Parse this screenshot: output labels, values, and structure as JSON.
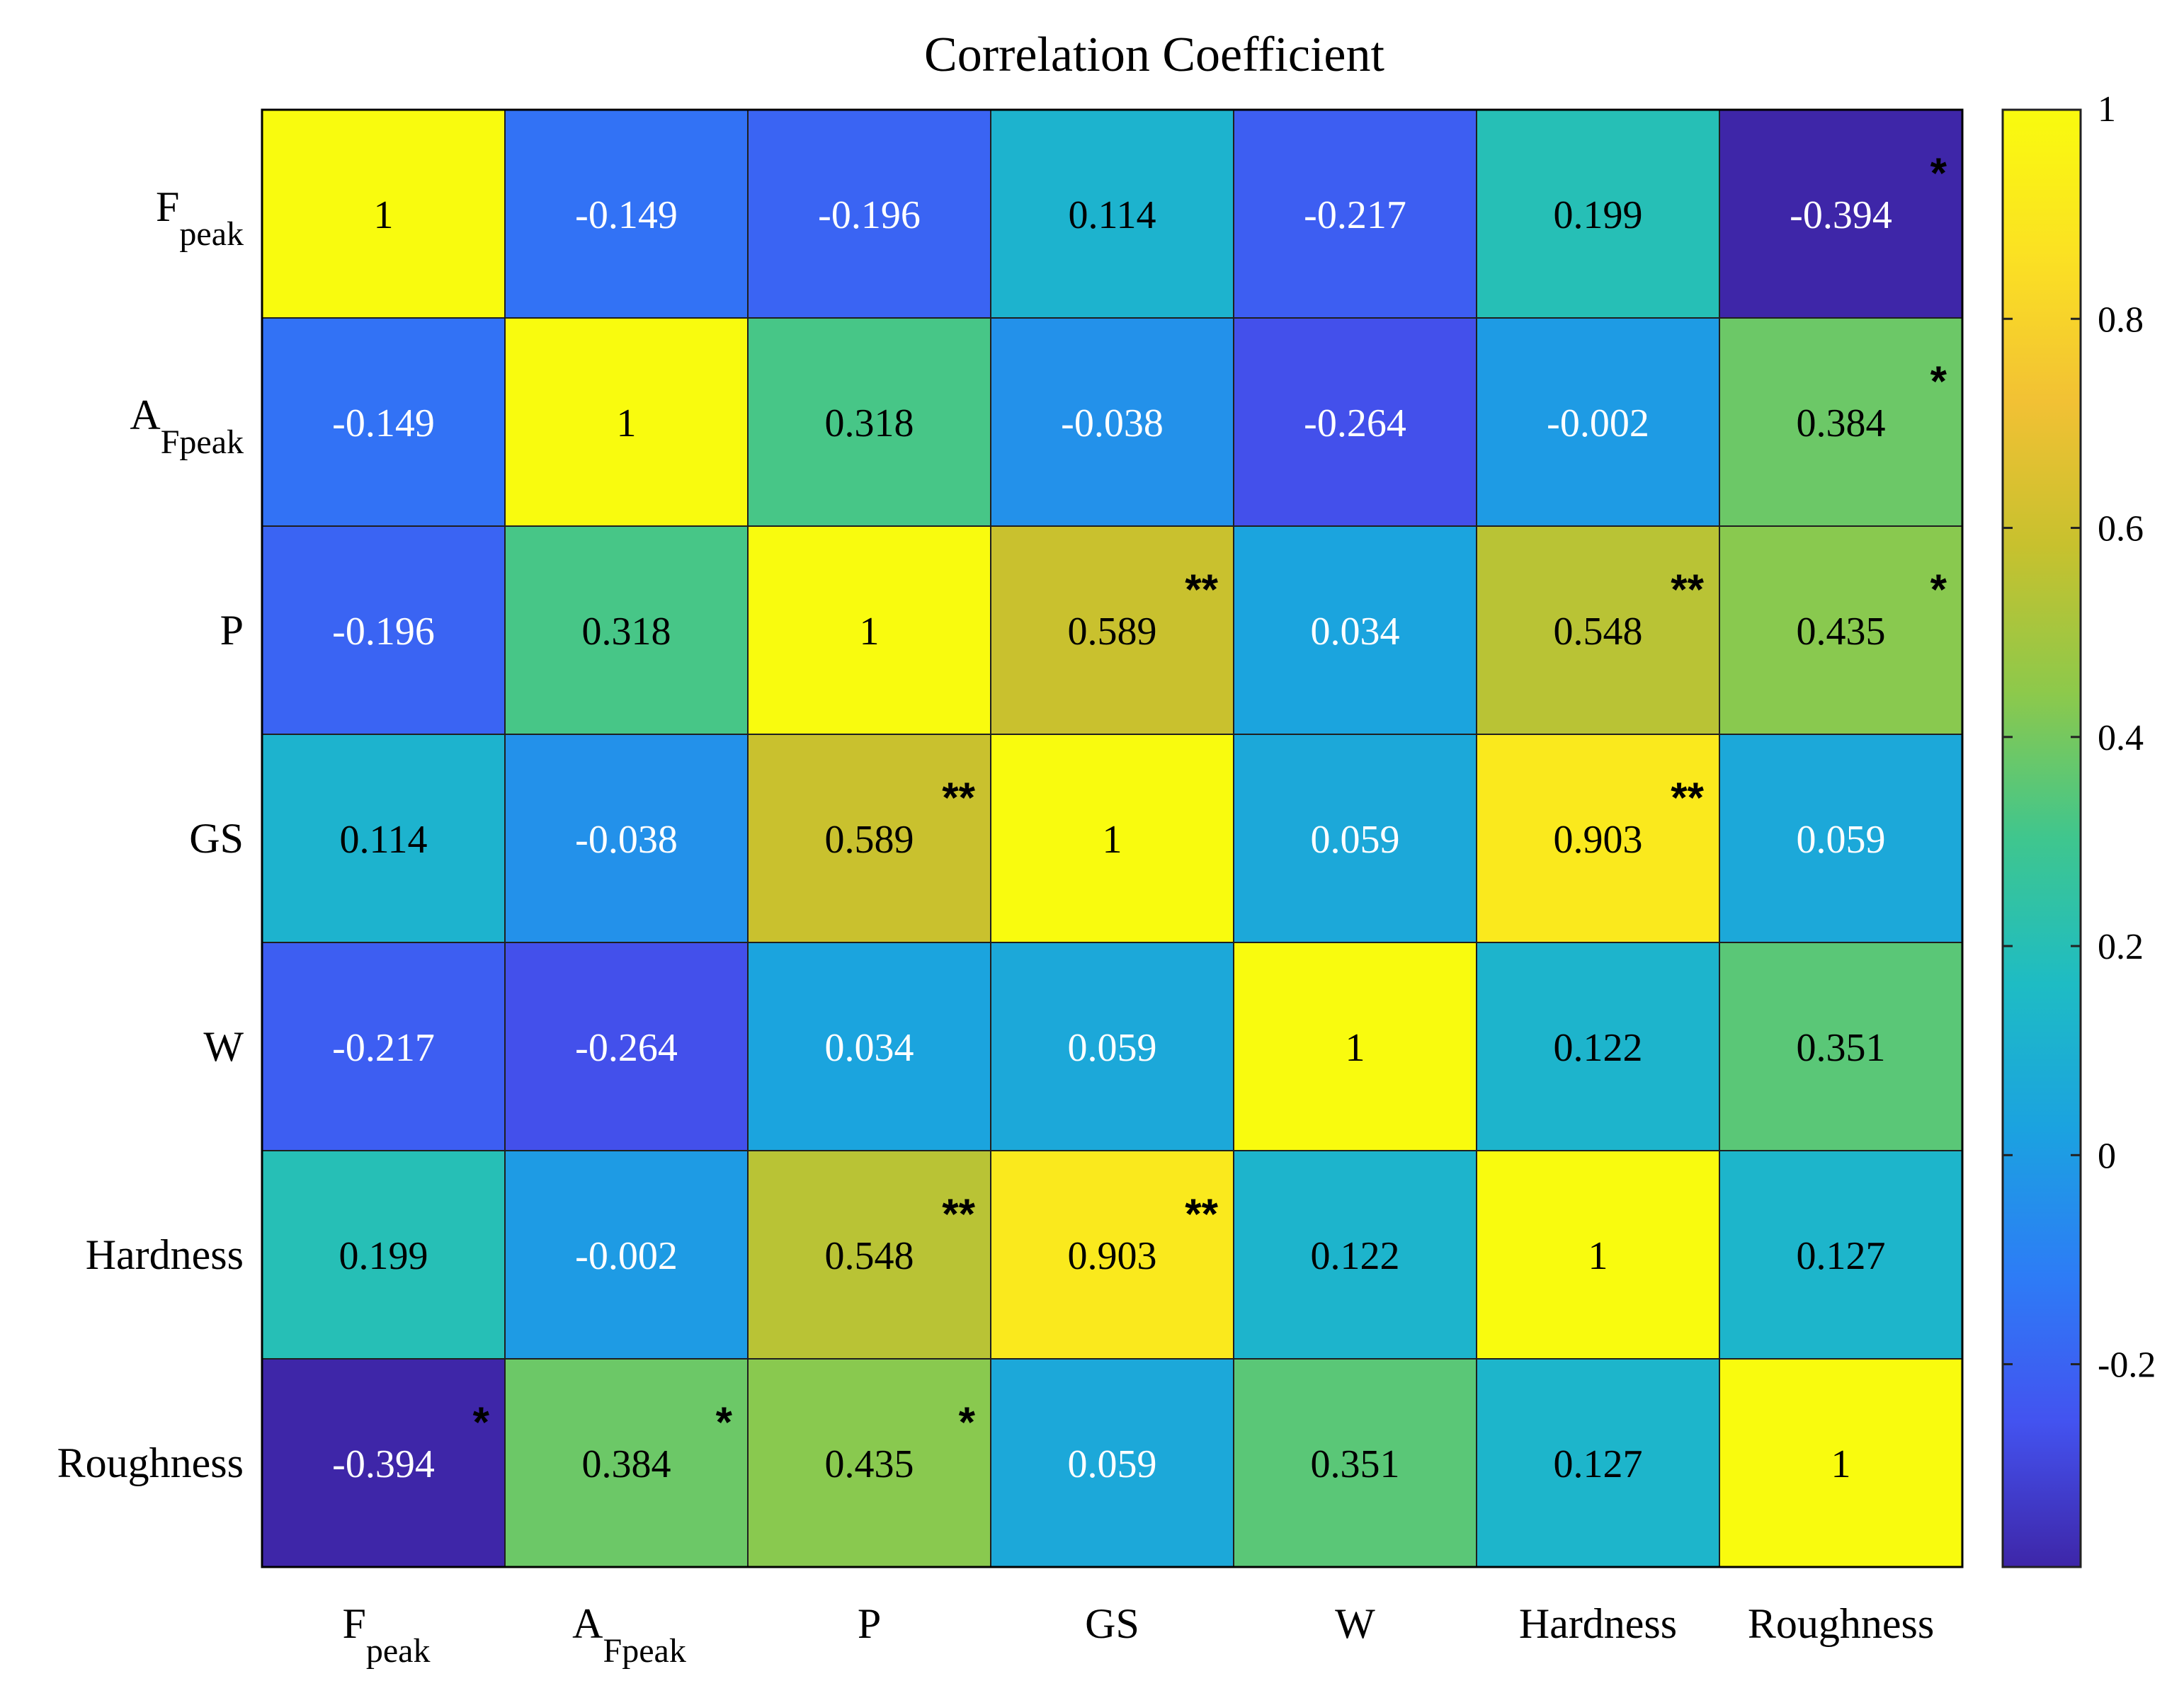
{
  "chart_data": {
    "type": "heatmap",
    "title": "Correlation Coefficient",
    "row_labels": [
      {
        "base": "F",
        "sub": "peak"
      },
      {
        "base": "A",
        "sub": "Fpeak"
      },
      {
        "base": "P",
        "sub": ""
      },
      {
        "base": "GS",
        "sub": ""
      },
      {
        "base": "W",
        "sub": ""
      },
      {
        "base": "Hardness",
        "sub": ""
      },
      {
        "base": "Roughness",
        "sub": ""
      }
    ],
    "col_labels": [
      {
        "base": "F",
        "sub": "peak"
      },
      {
        "base": "A",
        "sub": "Fpeak"
      },
      {
        "base": "P",
        "sub": ""
      },
      {
        "base": "GS",
        "sub": ""
      },
      {
        "base": "W",
        "sub": ""
      },
      {
        "base": "Hardness",
        "sub": ""
      },
      {
        "base": "Roughness",
        "sub": ""
      }
    ],
    "values": [
      [
        1,
        -0.149,
        -0.196,
        0.114,
        -0.217,
        0.199,
        -0.394
      ],
      [
        -0.149,
        1,
        0.318,
        -0.038,
        -0.264,
        -0.002,
        0.384
      ],
      [
        -0.196,
        0.318,
        1,
        0.589,
        0.034,
        0.548,
        0.435
      ],
      [
        0.114,
        -0.038,
        0.589,
        1,
        0.059,
        0.903,
        0.059
      ],
      [
        -0.217,
        -0.264,
        0.034,
        0.059,
        1,
        0.122,
        0.351
      ],
      [
        0.199,
        -0.002,
        0.548,
        0.903,
        0.122,
        1,
        0.127
      ],
      [
        -0.394,
        0.384,
        0.435,
        0.059,
        0.351,
        0.127,
        1
      ]
    ],
    "value_labels": [
      [
        "1",
        "-0.149",
        "-0.196",
        "0.114",
        "-0.217",
        "0.199",
        "-0.394"
      ],
      [
        "-0.149",
        "1",
        "0.318",
        "-0.038",
        "-0.264",
        "-0.002",
        "0.384"
      ],
      [
        "-0.196",
        "0.318",
        "1",
        "0.589",
        "0.034",
        "0.548",
        "0.435"
      ],
      [
        "0.114",
        "-0.038",
        "0.589",
        "1",
        "0.059",
        "0.903",
        "0.059"
      ],
      [
        "-0.217",
        "-0.264",
        "0.034",
        "0.059",
        "1",
        "0.122",
        "0.351"
      ],
      [
        "0.199",
        "-0.002",
        "0.548",
        "0.903",
        "0.122",
        "1",
        "0.127"
      ],
      [
        "-0.394",
        "0.384",
        "0.435",
        "0.059",
        "0.351",
        "0.127",
        "1"
      ]
    ],
    "significance": [
      [
        "",
        "",
        "",
        "",
        "",
        "",
        "*"
      ],
      [
        "",
        "",
        "",
        "",
        "",
        "",
        "*"
      ],
      [
        "",
        "",
        "",
        "**",
        "",
        "**",
        "*"
      ],
      [
        "",
        "",
        "**",
        "",
        "",
        "**",
        ""
      ],
      [
        "",
        "",
        "",
        "",
        "",
        "",
        ""
      ],
      [
        "",
        "",
        "**",
        "**",
        "",
        "",
        ""
      ],
      [
        "*",
        "*",
        "*",
        "",
        "",
        "",
        ""
      ]
    ],
    "colorbar": {
      "range": [
        -0.394,
        1
      ],
      "ticks": [
        -0.2,
        0,
        0.2,
        0.4,
        0.6,
        0.8,
        1
      ],
      "tick_labels": [
        "-0.2",
        "0",
        "0.2",
        "0.4",
        "0.6",
        "0.8",
        "1"
      ]
    },
    "colormap": "parula",
    "colormap_stops": [
      "#3e26a8",
      "#4353f0",
      "#2d7cf6",
      "#1ba2e0",
      "#1ebcc4",
      "#3fc68e",
      "#8dc94b",
      "#c7c12e",
      "#f2c134",
      "#fbe123",
      "#f9fb0e"
    ],
    "label_color_light": "#ffffff",
    "label_color_dark": "#000000",
    "grid_line_color": "#1f1f1f"
  }
}
